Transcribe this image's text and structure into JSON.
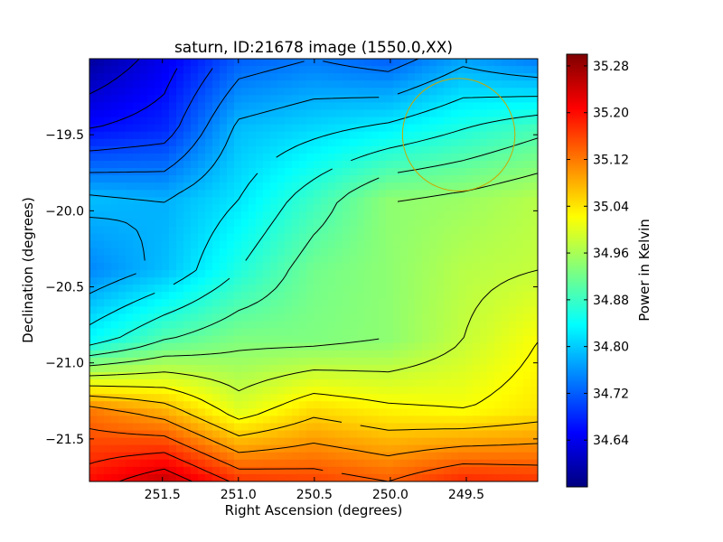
{
  "chart_data": {
    "type": "heatmap",
    "title": "saturn, ID:21678 image (1550.0,XX)",
    "xlabel": "Right Ascension (degrees)",
    "ylabel": "Declination (degrees)",
    "colorbar_label": "Power in Kelvin",
    "colormap": "jet",
    "xlim": [
      251.98,
      249.03
    ],
    "ylim": [
      -21.78,
      -19.0
    ],
    "x_ticks": [
      251.5,
      251.0,
      250.5,
      250.0,
      249.5
    ],
    "x_tick_labels": [
      "251.5",
      "251.0",
      "250.5",
      "250.0",
      "249.5"
    ],
    "y_ticks": [
      -19.5,
      -20.0,
      -20.5,
      -21.0,
      -21.5
    ],
    "y_tick_labels": [
      "−19.5",
      "−20.0",
      "−20.5",
      "−21.0",
      "−21.5"
    ],
    "colorbar_range": [
      34.56,
      35.3
    ],
    "colorbar_ticks": [
      34.64,
      34.72,
      34.8,
      34.88,
      34.96,
      35.04,
      35.12,
      35.2,
      35.28
    ],
    "colorbar_tick_labels": [
      "34.64",
      "34.72",
      "34.80",
      "34.88",
      "34.96",
      "35.04",
      "35.12",
      "35.20",
      "35.28"
    ],
    "contours": true,
    "contour_color": "#000000",
    "marker_circle": {
      "center_ra": 249.55,
      "center_dec": -19.5,
      "radius_deg": 0.37,
      "color": "#c8a800"
    },
    "value_grid": {
      "ra": [
        251.98,
        251.49,
        250.99,
        250.5,
        250.0,
        249.51,
        249.03
      ],
      "dec": [
        -19.0,
        -19.46,
        -19.93,
        -20.39,
        -20.85,
        -21.32,
        -21.78
      ],
      "values": [
        [
          34.58,
          34.64,
          34.72,
          34.74,
          34.72,
          34.77,
          34.74
        ],
        [
          34.66,
          34.68,
          34.79,
          34.81,
          34.83,
          34.86,
          34.89
        ],
        [
          34.79,
          34.78,
          34.82,
          34.88,
          34.94,
          34.95,
          34.97
        ],
        [
          34.75,
          34.79,
          34.86,
          34.92,
          34.94,
          34.97,
          34.98
        ],
        [
          34.84,
          34.9,
          34.93,
          34.93,
          34.94,
          34.98,
          35.02
        ],
        [
          35.12,
          35.08,
          35.0,
          35.05,
          35.03,
          35.02,
          35.04
        ],
        [
          35.2,
          35.25,
          35.17,
          35.16,
          35.14,
          35.18,
          35.17
        ]
      ]
    }
  }
}
